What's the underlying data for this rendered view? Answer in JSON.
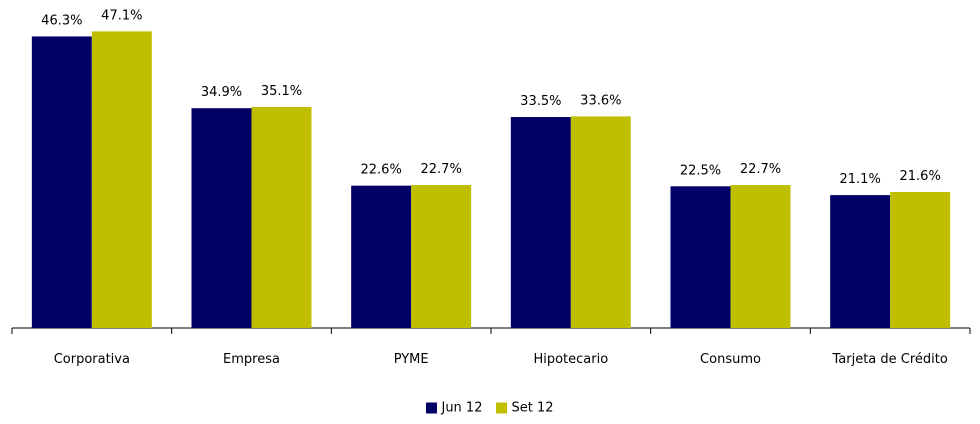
{
  "chart_data": {
    "type": "bar",
    "categories": [
      "Corporativa",
      "Empresa",
      "PYME",
      "Hipotecario",
      "Consumo",
      "Tarjeta de Crédito"
    ],
    "series": [
      {
        "name": "Jun 12",
        "values": [
          46.3,
          34.9,
          22.6,
          33.5,
          22.5,
          21.1
        ],
        "labels": [
          "46.3%",
          "34.9%",
          "22.6%",
          "33.5%",
          "22.5%",
          "21.1%"
        ]
      },
      {
        "name": "Set 12",
        "values": [
          47.1,
          35.1,
          22.7,
          33.6,
          22.7,
          21.6
        ],
        "labels": [
          "47.1%",
          "35.1%",
          "22.7%",
          "33.6%",
          "22.7%",
          "21.6%"
        ]
      }
    ],
    "colors": [
      "#000066",
      "#BFBF00"
    ],
    "ylim": [
      0,
      50
    ],
    "grid": false,
    "legend_position": "bottom",
    "title": "",
    "xlabel": "",
    "ylabel": ""
  }
}
